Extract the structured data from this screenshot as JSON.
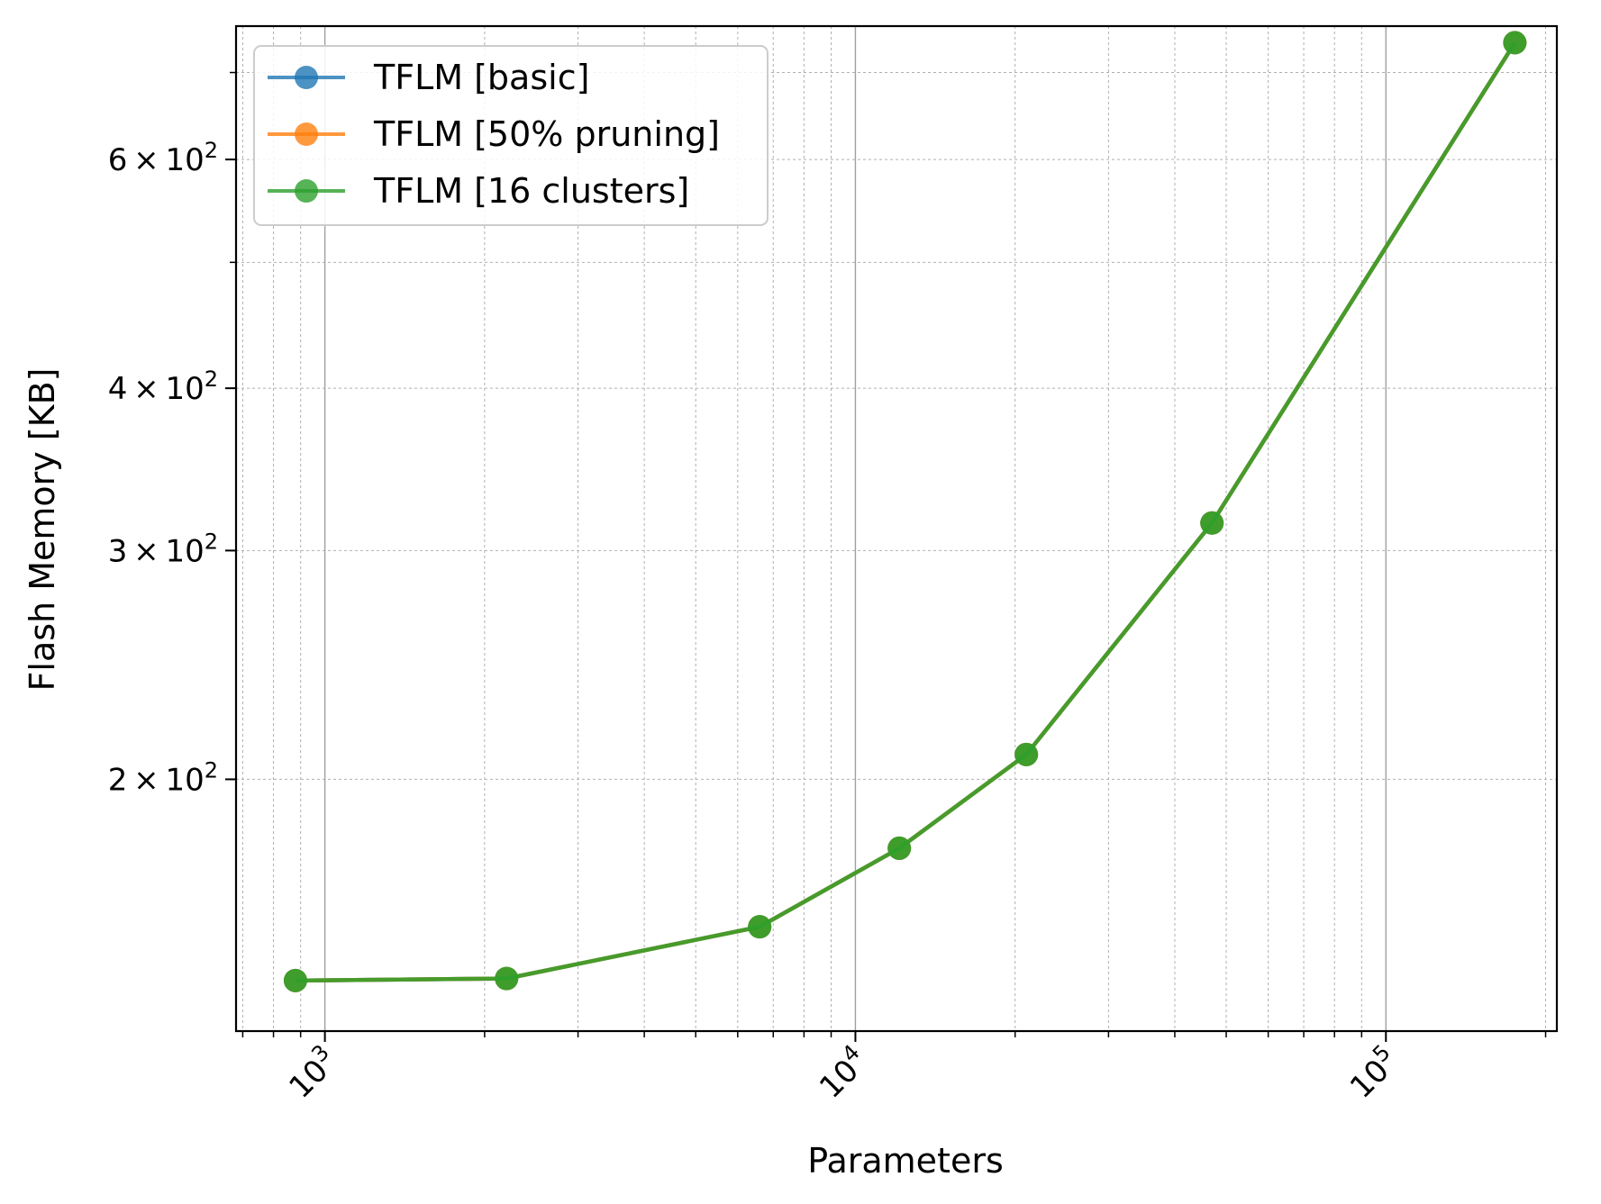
{
  "chart_data": {
    "type": "line",
    "xlabel": "Parameters",
    "ylabel": "Flash Memory [KB]",
    "xscale": "log",
    "yscale": "log",
    "xlim": [
      680,
      210000
    ],
    "ylim": [
      128,
      760
    ],
    "grid": true,
    "legend_position": "upper-left",
    "x_ticks": [
      {
        "value": 1000,
        "base": "10",
        "exp": "3"
      },
      {
        "value": 10000,
        "base": "10",
        "exp": "4"
      },
      {
        "value": 100000,
        "base": "10",
        "exp": "5"
      }
    ],
    "y_ticks": [
      {
        "value": 200,
        "coef": "2",
        "base": "10",
        "exp": "2"
      },
      {
        "value": 300,
        "coef": "3",
        "base": "10",
        "exp": "2"
      },
      {
        "value": 400,
        "coef": "4",
        "base": "10",
        "exp": "2"
      },
      {
        "value": 600,
        "coef": "6",
        "base": "10",
        "exp": "2"
      }
    ],
    "series": [
      {
        "name": "TFLM [basic]",
        "color": "#1f77b4",
        "x": [
          880,
          2200,
          6600,
          12100,
          21000,
          47000,
          175000
        ],
        "y": [
          140,
          140.5,
          154,
          177,
          209,
          315,
          738
        ]
      },
      {
        "name": "TFLM [50% pruning]",
        "color": "#ff7f0e",
        "x": [
          880,
          2200,
          6600,
          12100,
          21000,
          47000,
          175000
        ],
        "y": [
          140,
          140.5,
          154,
          177,
          209,
          315,
          738
        ]
      },
      {
        "name": "TFLM [16 clusters]",
        "color": "#2ca02c",
        "x": [
          880,
          2200,
          6600,
          12100,
          21000,
          47000,
          175000
        ],
        "y": [
          140,
          140.5,
          154,
          177,
          209,
          315,
          738
        ]
      }
    ]
  }
}
